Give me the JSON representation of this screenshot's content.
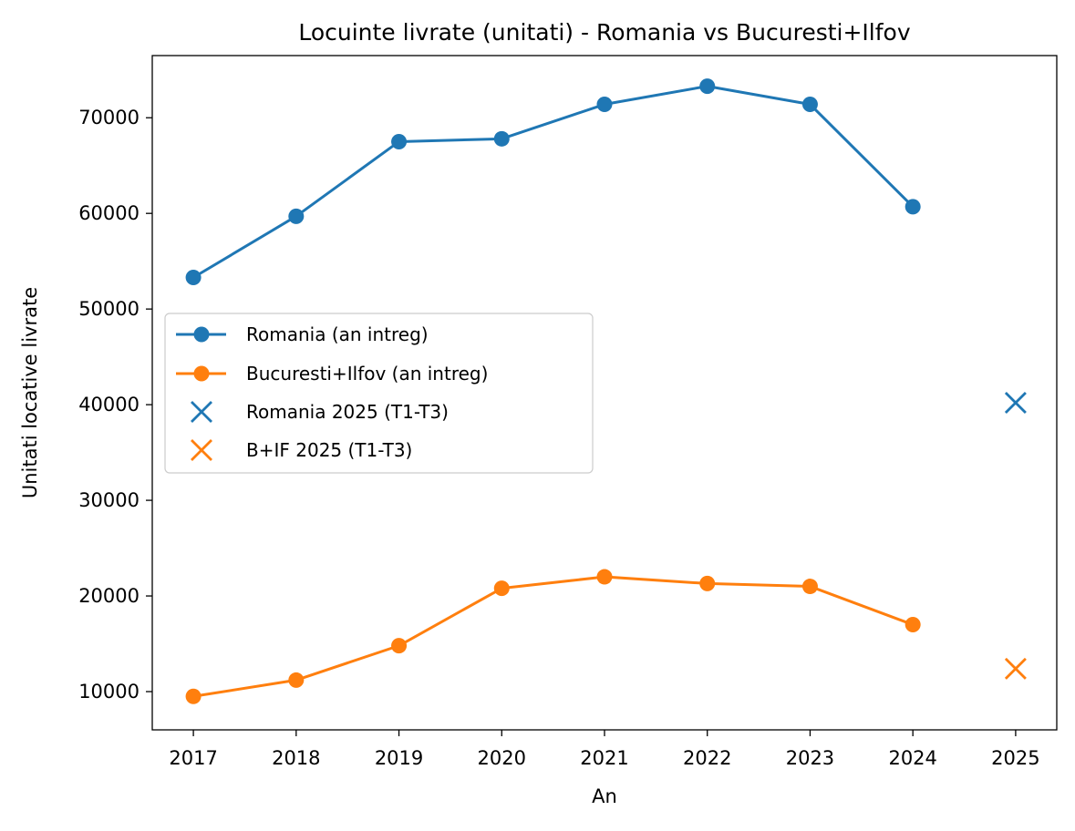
{
  "chart_data": {
    "type": "line",
    "title": "Locuinte livrate (unitati) - Romania vs Bucuresti+Ilfov",
    "xlabel": "An",
    "ylabel": "Unitati locative livrate",
    "xlim": [
      2016.6,
      2025.4
    ],
    "ylim": [
      6000,
      76500
    ],
    "x_ticks": [
      2017,
      2018,
      2019,
      2020,
      2021,
      2022,
      2023,
      2024,
      2025
    ],
    "y_ticks": [
      10000,
      20000,
      30000,
      40000,
      50000,
      60000,
      70000
    ],
    "grid": false,
    "legend_position": "center-left",
    "series": [
      {
        "name": "Romania (an intreg)",
        "kind": "line-marker",
        "color": "#1f77b4",
        "x": [
          2017,
          2018,
          2019,
          2020,
          2021,
          2022,
          2023,
          2024
        ],
        "values": [
          53300,
          59700,
          67500,
          67800,
          71400,
          73300,
          71400,
          60700
        ]
      },
      {
        "name": "Bucuresti+Ilfov (an intreg)",
        "kind": "line-marker",
        "color": "#ff7f0e",
        "x": [
          2017,
          2018,
          2019,
          2020,
          2021,
          2022,
          2023,
          2024
        ],
        "values": [
          9500,
          11200,
          14800,
          20800,
          22000,
          21300,
          21000,
          17000
        ]
      },
      {
        "name": "Romania 2025 (T1-T3)",
        "kind": "x-marker",
        "color": "#1f77b4",
        "x": [
          2025
        ],
        "values": [
          40200
        ]
      },
      {
        "name": "B+IF 2025 (T1-T3)",
        "kind": "x-marker",
        "color": "#ff7f0e",
        "x": [
          2025
        ],
        "values": [
          12400
        ]
      }
    ]
  }
}
